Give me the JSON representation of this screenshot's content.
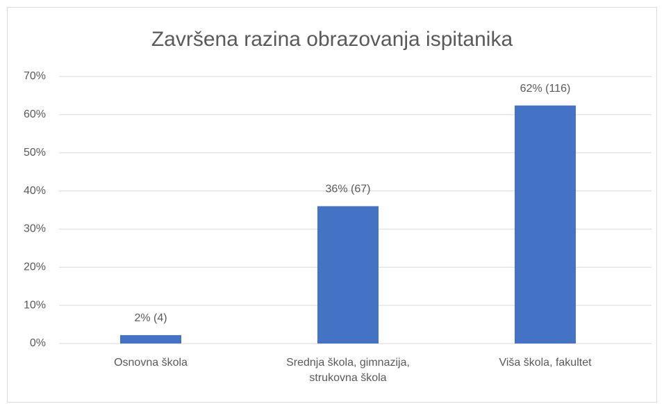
{
  "chart_data": {
    "type": "bar",
    "title": "Završena razina obrazovanja ispitanika",
    "categories": [
      "Osnovna škola",
      "Srednja škola, gimnazija, strukovna škola",
      "Viša škola, fakultet"
    ],
    "values": [
      2.2,
      36,
      62.4
    ],
    "value_labels": [
      "2% (4)",
      "36% (67)",
      "62% (116)"
    ],
    "color": "#4472c4",
    "ylim": [
      0,
      70
    ],
    "yticks": [
      {
        "value": 0,
        "label": "0%"
      },
      {
        "value": 10,
        "label": "10%"
      },
      {
        "value": 20,
        "label": "20%"
      },
      {
        "value": 30,
        "label": "30%"
      },
      {
        "value": 40,
        "label": "40%"
      },
      {
        "value": 50,
        "label": "50%"
      },
      {
        "value": 60,
        "label": "60%"
      },
      {
        "value": 70,
        "label": "70%"
      }
    ],
    "grid": true
  }
}
